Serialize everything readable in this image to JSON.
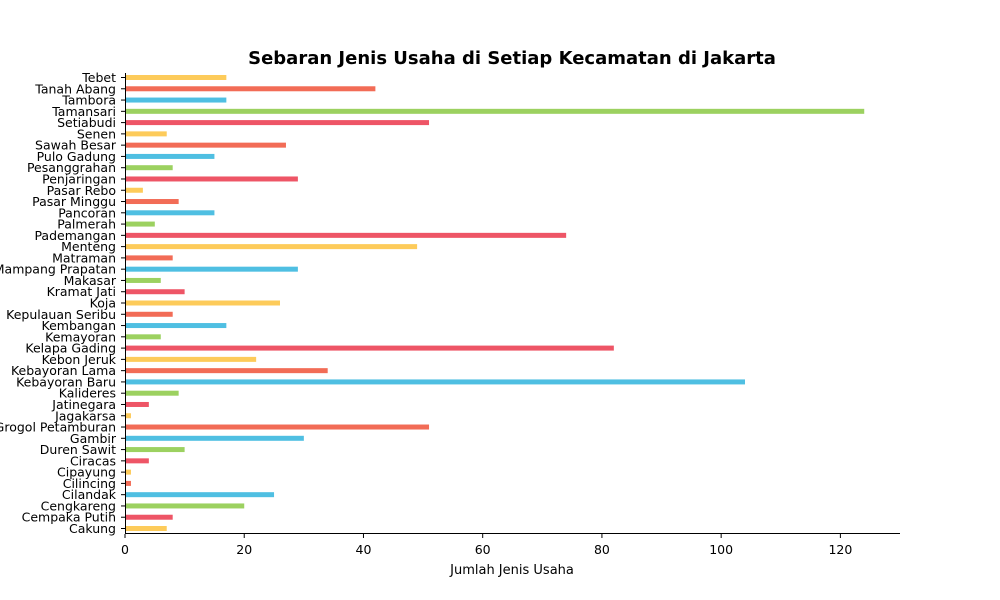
{
  "chart_data": {
    "type": "bar",
    "orientation": "horizontal",
    "title": "Sebaran Jenis Usaha di Setiap Kecamatan di Jakarta",
    "xlabel": "Jumlah Jenis Usaha",
    "ylabel": "",
    "xlim": [
      0,
      130
    ],
    "xticks": [
      0,
      20,
      40,
      60,
      80,
      100,
      120
    ],
    "grid": false,
    "categories": [
      "Cakung",
      "Cempaka Putih",
      "Cengkareng",
      "Cilandak",
      "Cilincing",
      "Cipayung",
      "Ciracas",
      "Duren Sawit",
      "Gambir",
      "Grogol Petamburan",
      "Jagakarsa",
      "Jatinegara",
      "Kalideres",
      "Kebayoran Baru",
      "Kebayoran Lama",
      "Kebon Jeruk",
      "Kelapa Gading",
      "Kemayoran",
      "Kembangan",
      "Kepulauan Seribu",
      "Koja",
      "Kramat Jati",
      "Makasar",
      "Mampang Prapatan",
      "Matraman",
      "Menteng",
      "Pademangan",
      "Palmerah",
      "Pancoran",
      "Pasar Minggu",
      "Pasar Rebo",
      "Penjaringan",
      "Pesanggrahan",
      "Pulo Gadung",
      "Sawah Besar",
      "Senen",
      "Setiabudi",
      "Tamansari",
      "Tambora",
      "Tanah Abang",
      "Tebet"
    ],
    "values": [
      7,
      8,
      20,
      25,
      1,
      1,
      4,
      10,
      30,
      51,
      1,
      4,
      9,
      104,
      34,
      22,
      82,
      6,
      17,
      8,
      26,
      10,
      6,
      29,
      8,
      49,
      74,
      5,
      15,
      9,
      3,
      29,
      8,
      15,
      27,
      7,
      51,
      124,
      17,
      42,
      17
    ],
    "palette": [
      "#fdcb5a",
      "#ee5566",
      "#9cd160",
      "#4fbfe2",
      "#f26c56"
    ]
  }
}
